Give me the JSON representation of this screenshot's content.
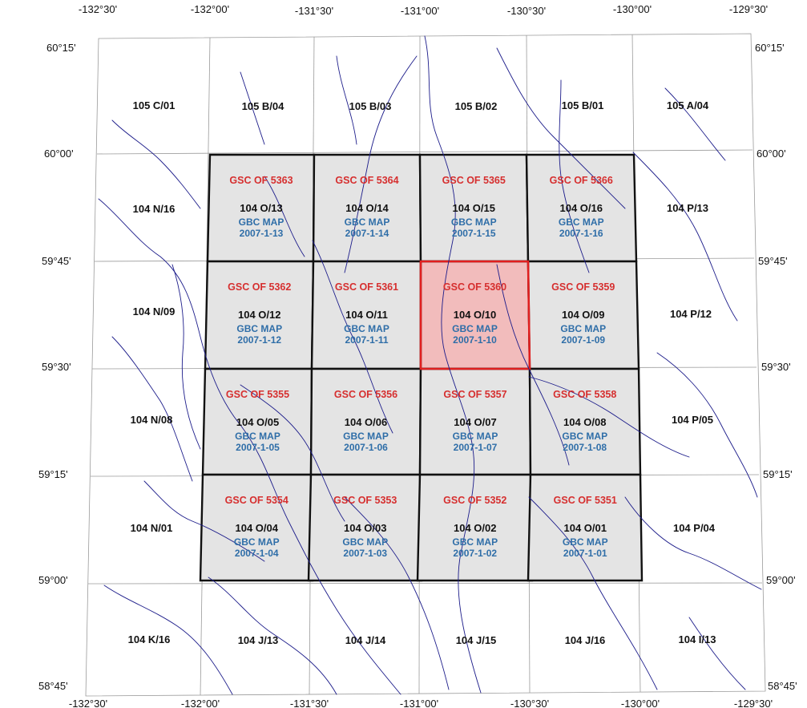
{
  "colors": {
    "gsc": "#d62f2f",
    "gbc": "#2f6ea8",
    "nts": "#111111",
    "river": "#1c1c8a",
    "grid": "#9a9a9a",
    "tile_fill": "#e4e4e4",
    "tile_border": "#111111",
    "highlight_fill": "#f2bcbc",
    "highlight_border": "#e01f1f"
  },
  "lon_top": [
    "-132°30'",
    "-132°00'",
    "-131°30'",
    "-131°00'",
    "-130°30'",
    "-130°00'",
    "-129°30'"
  ],
  "lon_bottom": [
    "-132°30'",
    "-132°00'",
    "-131°30'",
    "-131°00'",
    "-130°30'",
    "-130°00'",
    "-129°30'"
  ],
  "lat_left": [
    "60°15'",
    "60°00'",
    "59°45'",
    "59°30'",
    "59°15'",
    "59°00'",
    "58°45'"
  ],
  "lat_right": [
    "60°15'",
    "60°00'",
    "59°45'",
    "59°30'",
    "59°15'",
    "59°00'",
    "58°45'"
  ],
  "outer_top": [
    "105 C/01",
    "105 B/04",
    "105 B/03",
    "105 B/02",
    "105 B/01",
    "105 A/04"
  ],
  "outer_bottom": [
    "104 K/16",
    "104 J/13",
    "104 J/14",
    "104 J/15",
    "104 J/16",
    "104 I/13"
  ],
  "outer_left": [
    "104 N/16",
    "104 N/09",
    "104 N/08",
    "104 N/01"
  ],
  "outer_right": [
    "104 P/13",
    "104 P/12",
    "104 P/05",
    "104 P/04"
  ],
  "tiles": [
    [
      {
        "gsc": "GSC OF 5363",
        "nts": "104 O/13",
        "gbc1": "GBC MAP",
        "gbc2": "2007-1-13",
        "highlight": false
      },
      {
        "gsc": "GSC OF 5364",
        "nts": "104 O/14",
        "gbc1": "GBC MAP",
        "gbc2": "2007-1-14",
        "highlight": false
      },
      {
        "gsc": "GSC OF 5365",
        "nts": "104 O/15",
        "gbc1": "GBC MAP",
        "gbc2": "2007-1-15",
        "highlight": false
      },
      {
        "gsc": "GSC OF 5366",
        "nts": "104 O/16",
        "gbc1": "GBC MAP",
        "gbc2": "2007-1-16",
        "highlight": false
      }
    ],
    [
      {
        "gsc": "GSC OF 5362",
        "nts": "104 O/12",
        "gbc1": "GBC MAP",
        "gbc2": "2007-1-12",
        "highlight": false
      },
      {
        "gsc": "GSC OF 5361",
        "nts": "104 O/11",
        "gbc1": "GBC MAP",
        "gbc2": "2007-1-11",
        "highlight": false
      },
      {
        "gsc": "GSC OF 5360",
        "nts": "104 O/10",
        "gbc1": "GBC MAP",
        "gbc2": "2007-1-10",
        "highlight": true
      },
      {
        "gsc": "GSC OF 5359",
        "nts": "104 O/09",
        "gbc1": "GBC MAP",
        "gbc2": "2007-1-09",
        "highlight": false
      }
    ],
    [
      {
        "gsc": "GSC OF 5355",
        "nts": "104 O/05",
        "gbc1": "GBC MAP",
        "gbc2": "2007-1-05",
        "highlight": false
      },
      {
        "gsc": "GSC OF 5356",
        "nts": "104 O/06",
        "gbc1": "GBC MAP",
        "gbc2": "2007-1-06",
        "highlight": false
      },
      {
        "gsc": "GSC OF 5357",
        "nts": "104 O/07",
        "gbc1": "GBC MAP",
        "gbc2": "2007-1-07",
        "highlight": false
      },
      {
        "gsc": "GSC OF 5358",
        "nts": "104 O/08",
        "gbc1": "GBC MAP",
        "gbc2": "2007-1-08",
        "highlight": false
      }
    ],
    [
      {
        "gsc": "GSC OF 5354",
        "nts": "104 O/04",
        "gbc1": "GBC MAP",
        "gbc2": "2007-1-04",
        "highlight": false
      },
      {
        "gsc": "GSC OF 5353",
        "nts": "104 O/03",
        "gbc1": "GBC MAP",
        "gbc2": "2007-1-03",
        "highlight": false
      },
      {
        "gsc": "GSC OF 5352",
        "nts": "104 O/02",
        "gbc1": "GBC MAP",
        "gbc2": "2007-1-02",
        "highlight": false
      },
      {
        "gsc": "GSC OF 5351",
        "nts": "104 O/01",
        "gbc1": "GBC MAP",
        "gbc2": "2007-1-01",
        "highlight": false
      }
    ]
  ]
}
